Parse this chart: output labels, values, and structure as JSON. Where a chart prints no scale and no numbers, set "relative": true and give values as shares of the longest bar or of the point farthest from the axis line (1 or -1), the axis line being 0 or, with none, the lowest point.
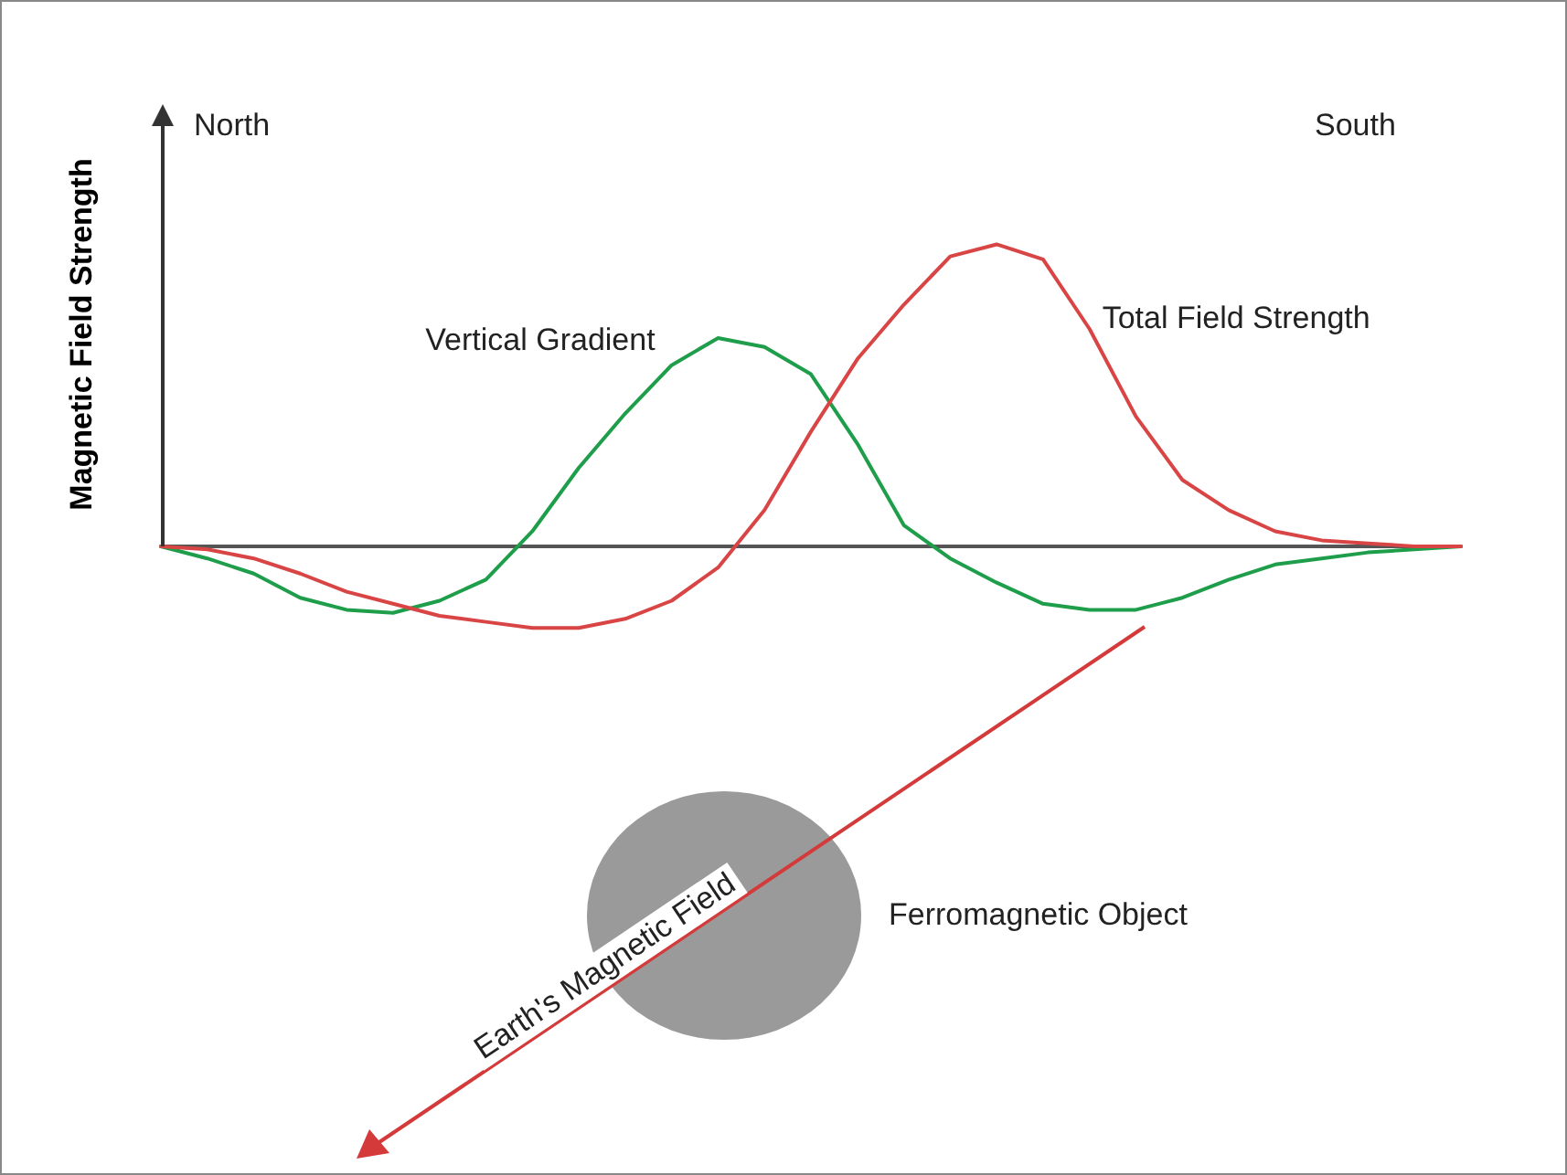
{
  "chart_data": {
    "type": "line",
    "relative": true,
    "ylabel": "Magnetic Field Strength",
    "legend": false,
    "grid": false,
    "marker": "none",
    "categories": [
      null,
      null,
      null,
      null,
      null,
      null,
      null,
      null,
      null,
      null,
      null,
      null,
      null,
      null,
      null,
      null,
      null,
      null,
      null,
      null,
      null,
      null,
      null,
      null,
      null,
      null,
      null,
      null,
      null
    ],
    "series": [
      {
        "name": "Vertical Gradient",
        "color": "#1e9e4a",
        "values": [
          0,
          -0.04,
          -0.09,
          -0.17,
          -0.21,
          -0.22,
          -0.18,
          -0.11,
          0.05,
          0.26,
          0.44,
          0.6,
          0.69,
          0.66,
          0.57,
          0.34,
          0.07,
          -0.04,
          -0.12,
          -0.19,
          -0.21,
          -0.21,
          -0.17,
          -0.11,
          -0.06,
          -0.04,
          -0.02,
          -0.01,
          0
        ]
      },
      {
        "name": "Total Field Strength",
        "color": "#d94545",
        "values": [
          0,
          -0.01,
          -0.04,
          -0.09,
          -0.15,
          -0.19,
          -0.23,
          -0.25,
          -0.27,
          -0.27,
          -0.24,
          -0.18,
          -0.07,
          0.12,
          0.38,
          0.62,
          0.8,
          0.96,
          1,
          0.95,
          0.72,
          0.43,
          0.22,
          0.12,
          0.05,
          0.02,
          0.01,
          0,
          0
        ]
      }
    ],
    "annotations": [
      "North",
      "South",
      "Earth's Magnetic Field",
      "Ferromagnetic Object"
    ]
  }
}
